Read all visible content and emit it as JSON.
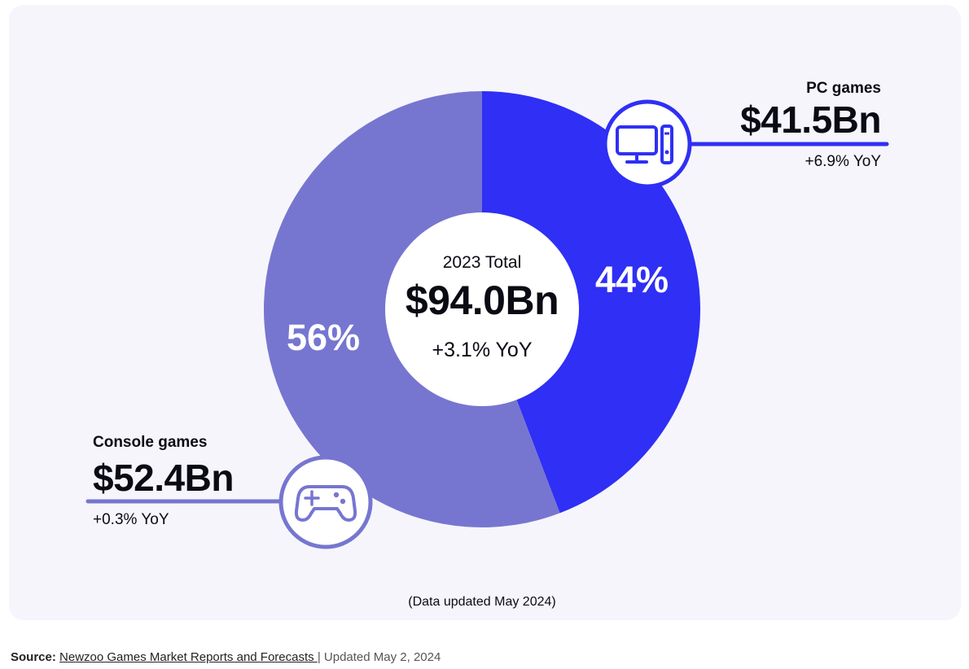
{
  "chart_data": {
    "type": "pie",
    "title": "2023 Total",
    "center": {
      "title": "2023 Total",
      "value": "$94.0Bn",
      "yoy": "+3.1% YoY"
    },
    "slices": [
      {
        "name": "PC games",
        "value": 41.5,
        "display_value": "$41.5Bn",
        "percent": 44,
        "percent_label": "44%",
        "yoy": "+6.9% YoY",
        "color": "#2f2ff5",
        "icon": "computer-icon"
      },
      {
        "name": "Console games",
        "value": 52.4,
        "display_value": "$52.4Bn",
        "percent": 56,
        "percent_label": "56%",
        "yoy": "+0.3% YoY",
        "color": "#7676d0",
        "icon": "gamepad-icon"
      }
    ],
    "note": "(Data updated May 2024)"
  },
  "source": {
    "label": "Source:",
    "link_text": "Newzoo Games Market Reports and Forecasts ",
    "separator": "|",
    "updated": " Updated May 2, 2024"
  }
}
